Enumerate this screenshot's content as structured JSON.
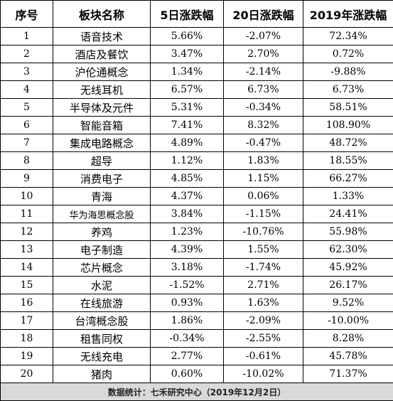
{
  "headers": {
    "index": "序号",
    "name": "板块名称",
    "chg5d": "5日涨跌幅",
    "chg20d": "20日涨跌幅",
    "chg2019": "2019年涨跌幅"
  },
  "rows": [
    {
      "index": "1",
      "name": "语音技术",
      "chg5d": "5.66%",
      "chg20d": "-2.07%",
      "chg2019": "72.34%"
    },
    {
      "index": "2",
      "name": "酒店及餐饮",
      "chg5d": "3.47%",
      "chg20d": "2.70%",
      "chg2019": "0.72%"
    },
    {
      "index": "3",
      "name": "沪伦通概念",
      "chg5d": "1.34%",
      "chg20d": "-2.14%",
      "chg2019": "-9.88%"
    },
    {
      "index": "4",
      "name": "无线耳机",
      "chg5d": "6.57%",
      "chg20d": "6.73%",
      "chg2019": "6.73%"
    },
    {
      "index": "5",
      "name": "半导体及元件",
      "chg5d": "5.31%",
      "chg20d": "-0.34%",
      "chg2019": "58.51%"
    },
    {
      "index": "6",
      "name": "智能音箱",
      "chg5d": "7.41%",
      "chg20d": "8.32%",
      "chg2019": "108.90%"
    },
    {
      "index": "7",
      "name": "集成电路概念",
      "chg5d": "4.89%",
      "chg20d": "-0.47%",
      "chg2019": "48.72%"
    },
    {
      "index": "8",
      "name": "超导",
      "chg5d": "1.12%",
      "chg20d": "1.83%",
      "chg2019": "18.55%"
    },
    {
      "index": "9",
      "name": "消费电子",
      "chg5d": "4.85%",
      "chg20d": "1.15%",
      "chg2019": "66.27%"
    },
    {
      "index": "10",
      "name": "青海",
      "chg5d": "4.37%",
      "chg20d": "0.06%",
      "chg2019": "1.33%"
    },
    {
      "index": "11",
      "name": "华为海思概念股",
      "chg5d": "3.84%",
      "chg20d": "-1.15%",
      "chg2019": "24.41%"
    },
    {
      "index": "12",
      "name": "养鸡",
      "chg5d": "1.23%",
      "chg20d": "-10.76%",
      "chg2019": "55.98%"
    },
    {
      "index": "13",
      "name": "电子制造",
      "chg5d": "4.39%",
      "chg20d": "1.55%",
      "chg2019": "62.30%"
    },
    {
      "index": "14",
      "name": "芯片概念",
      "chg5d": "3.18%",
      "chg20d": "-1.74%",
      "chg2019": "45.92%"
    },
    {
      "index": "15",
      "name": "水泥",
      "chg5d": "-1.52%",
      "chg20d": "2.71%",
      "chg2019": "26.17%"
    },
    {
      "index": "16",
      "name": "在线旅游",
      "chg5d": "0.93%",
      "chg20d": "1.63%",
      "chg2019": "9.52%"
    },
    {
      "index": "17",
      "name": "台湾概念股",
      "chg5d": "1.86%",
      "chg20d": "-2.09%",
      "chg2019": "-10.00%"
    },
    {
      "index": "18",
      "name": "租售同权",
      "chg5d": "-0.34%",
      "chg20d": "-2.55%",
      "chg2019": "8.28%"
    },
    {
      "index": "19",
      "name": "无线充电",
      "chg5d": "2.77%",
      "chg20d": "-0.61%",
      "chg2019": "45.78%"
    },
    {
      "index": "20",
      "name": "猪肉",
      "chg5d": "0.60%",
      "chg20d": "-10.02%",
      "chg2019": "71.37%"
    }
  ],
  "footer": "数据统计：七禾研究中心（2019年12月2日）"
}
